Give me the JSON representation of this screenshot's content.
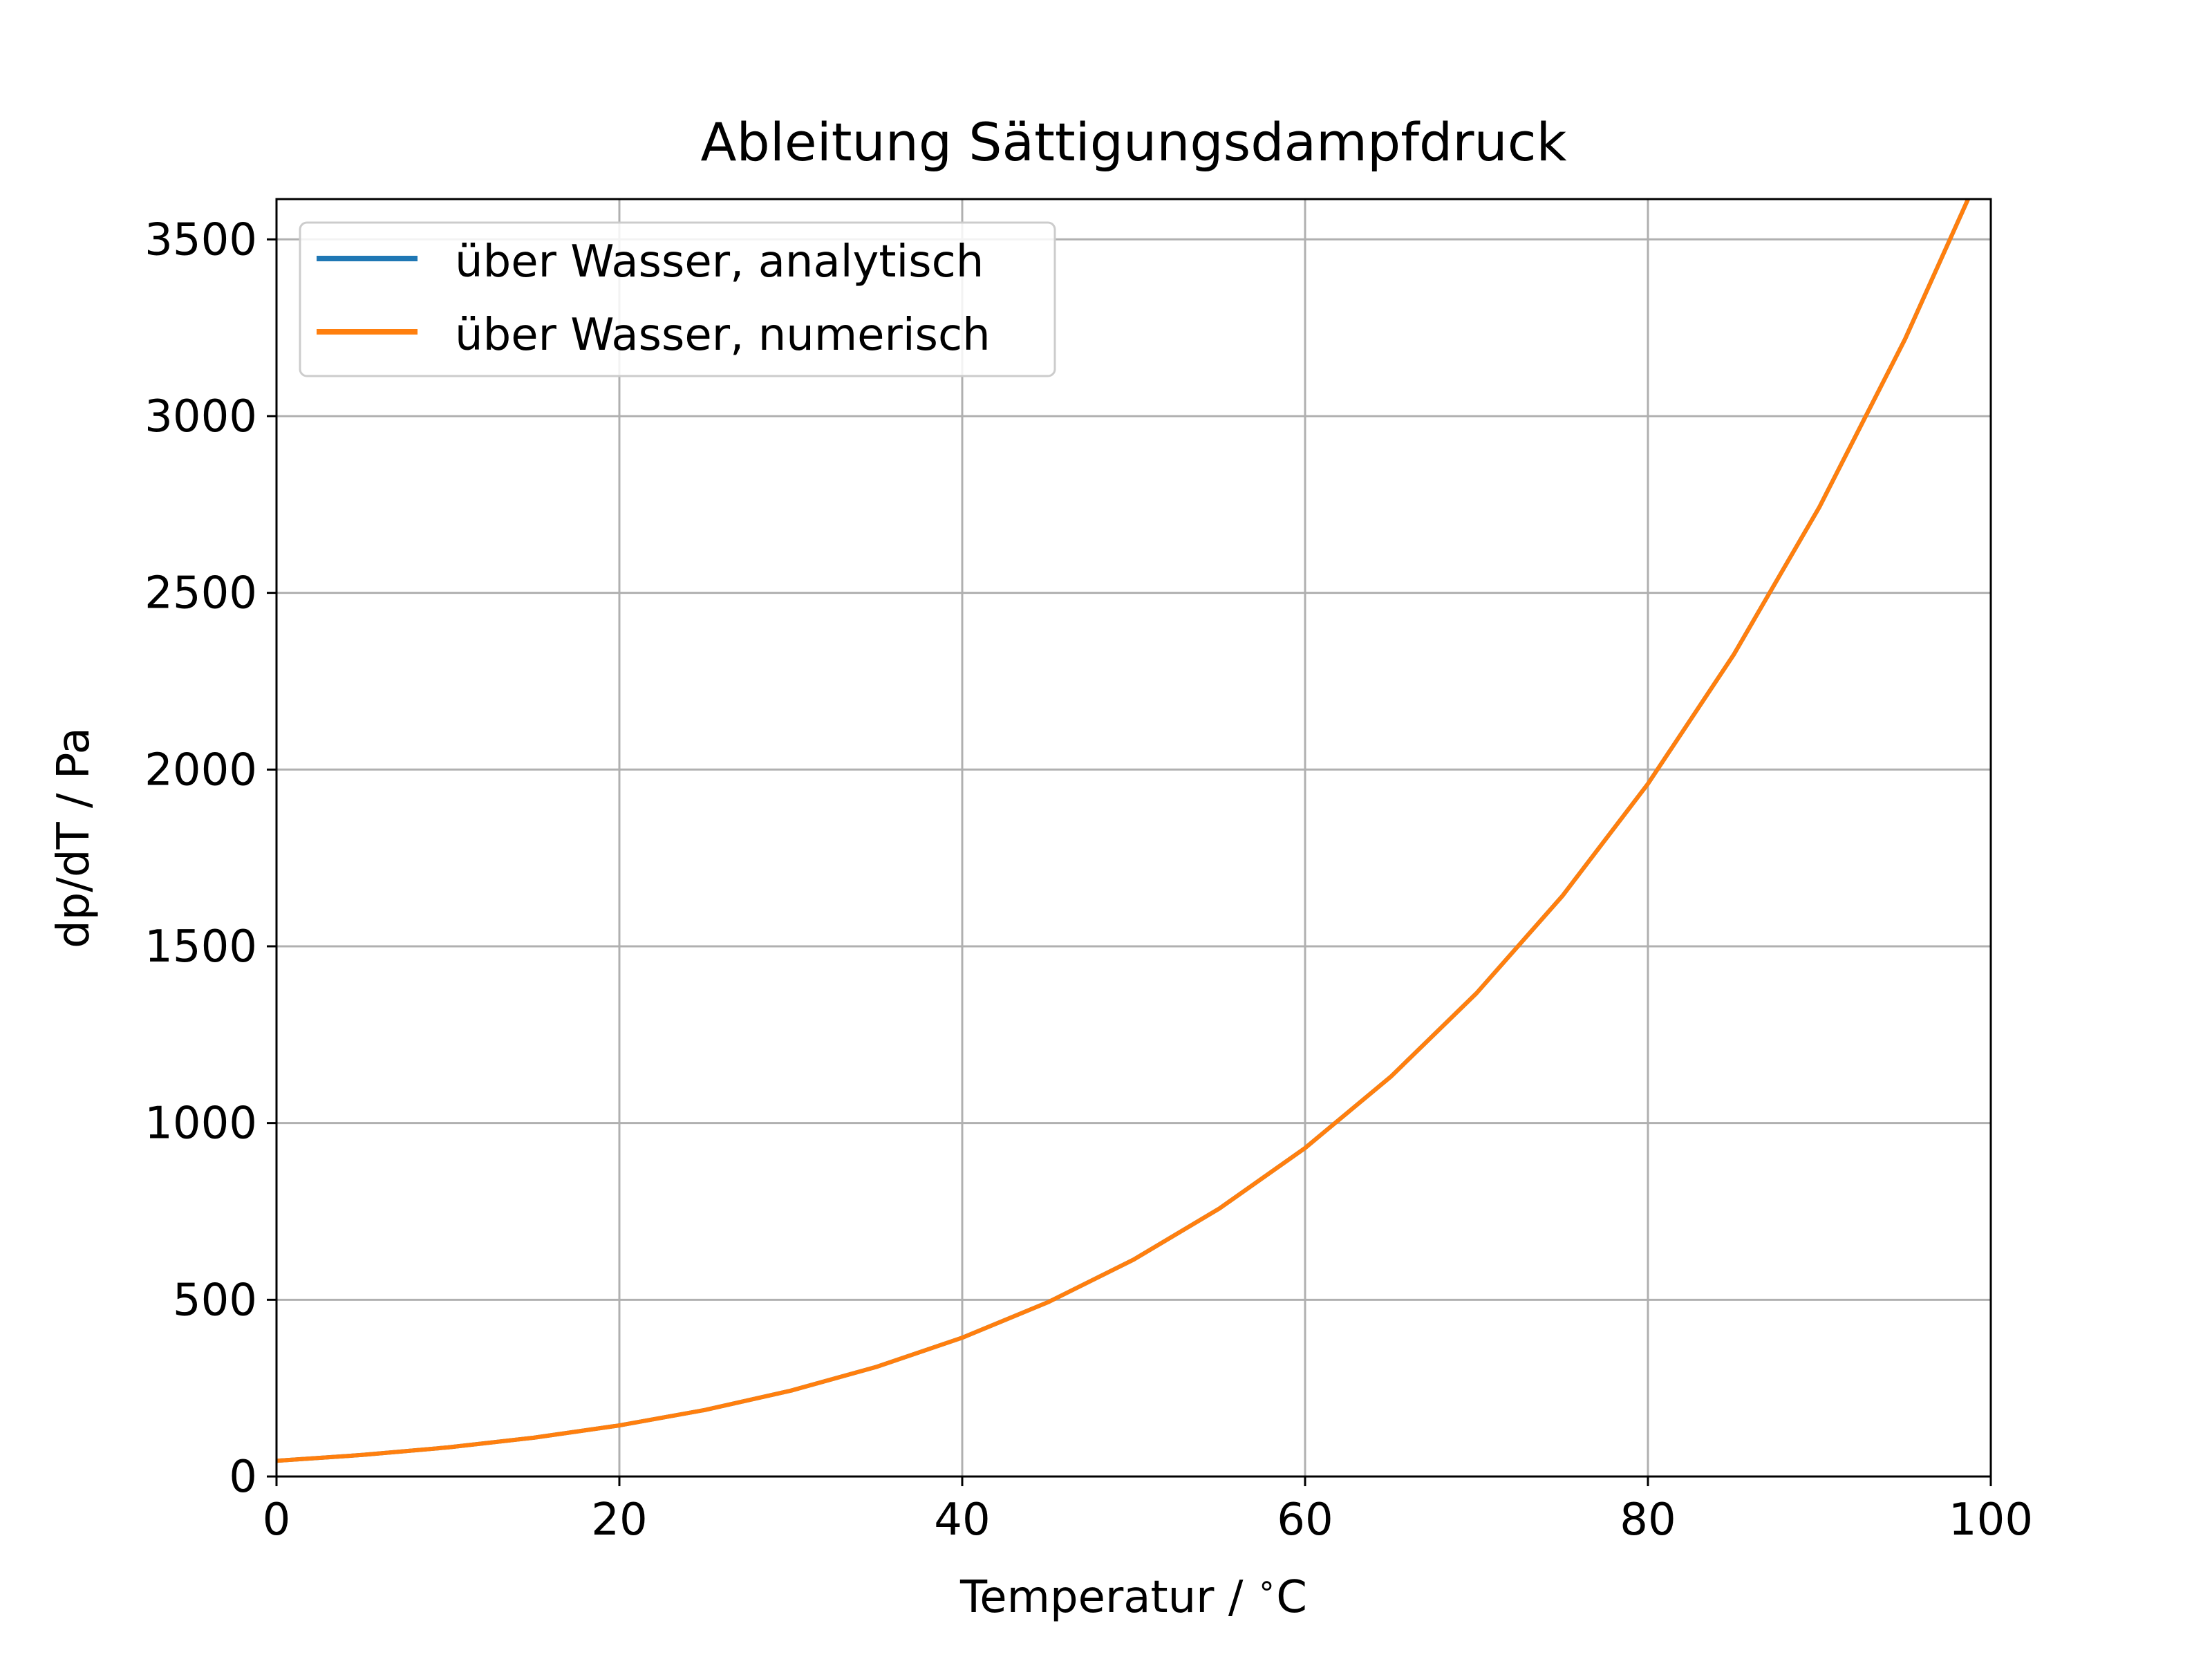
{
  "chart_data": {
    "type": "line",
    "title": "Ableitung Sättigungsdampfdruck",
    "xlabel": "Temperatur / $^\\circ$C",
    "xlabel_parts": {
      "text": "Temperatur / ",
      "degree": "∘",
      "unit": "C"
    },
    "ylabel": "dp/dT / Pa",
    "xlim": [
      0,
      100
    ],
    "ylim": [
      0,
      3614
    ],
    "xticks": [
      0,
      20,
      40,
      60,
      80,
      100
    ],
    "yticks": [
      0,
      500,
      1000,
      1500,
      2000,
      2500,
      3000,
      3500
    ],
    "grid": true,
    "legend_position": "upper-left",
    "x": [
      0,
      5,
      10,
      15,
      20,
      25,
      30,
      35,
      40,
      45,
      50,
      55,
      60,
      65,
      70,
      75,
      80,
      85,
      90,
      95,
      100
    ],
    "series": [
      {
        "name": "über Wasser, analytisch",
        "color": "#1f77b4",
        "values": [
          44.4,
          61.0,
          82.3,
          109.7,
          144.6,
          188.3,
          242.9,
          310.2,
          392.7,
          493.0,
          613.7,
          758.1,
          929.3,
          1131.2,
          1367.3,
          1642.0,
          1959.7,
          2324.9,
          2742.6,
          3218.0,
          3756.7
        ]
      },
      {
        "name": "über Wasser, numerisch",
        "color": "#ff7f0e",
        "values": [
          44.4,
          61.0,
          82.3,
          109.7,
          144.6,
          188.3,
          242.9,
          310.2,
          392.7,
          493.0,
          613.7,
          758.1,
          929.3,
          1131.2,
          1367.3,
          1642.0,
          1959.7,
          2324.9,
          2742.6,
          3218.0,
          3756.7
        ]
      }
    ]
  }
}
